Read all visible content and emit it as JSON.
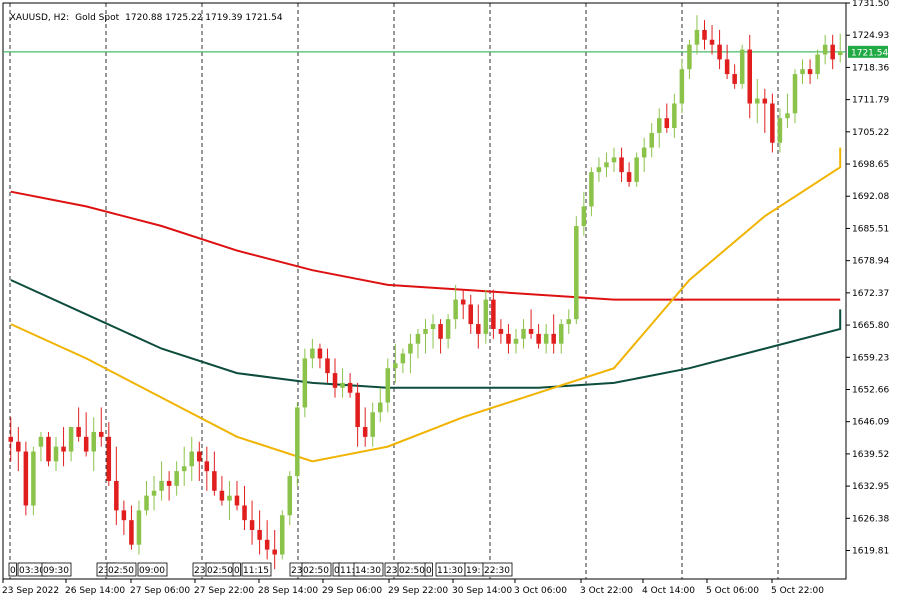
{
  "header": {
    "symbol": "XAUUSD, H2:",
    "description": "Gold Spot",
    "ohlc": "1720.88 1725.22 1719.39 1721.54"
  },
  "colors": {
    "bull": "#8bc34a",
    "bear": "#e01e1e",
    "grid": "#000000",
    "price_line": "#22aa44",
    "price_label_bg": "#22aa44",
    "ma_red": "#dd1111",
    "ma_dark": "#0d4d3d",
    "ma_yellow": "#f0b400"
  },
  "chart_data": {
    "type": "candlestick",
    "ylim": [
      1614,
      1731.5
    ],
    "y_ticks": [
      "1731.50",
      "1724.93",
      "1718.36",
      "1711.79",
      "1705.22",
      "1698.65",
      "1692.08",
      "1685.51",
      "1678.94",
      "1672.37",
      "1665.80",
      "1659.23",
      "1652.66",
      "1646.09",
      "1639.52",
      "1632.95",
      "1626.38",
      "1619.81"
    ],
    "x_ticks": [
      "23 Sep 2022",
      "26 Sep 14:00",
      "27 Sep 06:00",
      "27 Sep 22:00",
      "28 Sep 14:00",
      "29 Sep 06:00",
      "29 Sep 22:00",
      "30 Sep 14:00",
      "3 Oct 06:00",
      "3 Oct 22:00",
      "4 Oct 14:00",
      "5 Oct 06:00",
      "5 Oct 22:00"
    ],
    "mini_time_labels": [
      "0",
      "03:30",
      "09:30",
      "23:",
      "02:50",
      "09:00",
      "23:",
      "02:50",
      "0",
      "11:15",
      "23:",
      "02:50",
      "0",
      "11:",
      "14:30",
      "23:",
      "02:50",
      "0",
      "11:30",
      "19:",
      "22:30"
    ],
    "current_price": "1721.54",
    "candles": [
      [
        1643,
        1647,
        1638,
        1642
      ],
      [
        1642,
        1645,
        1636,
        1640
      ],
      [
        1640,
        1642,
        1627,
        1629
      ],
      [
        1629,
        1641,
        1627,
        1640
      ],
      [
        1641,
        1644,
        1638,
        1643
      ],
      [
        1643,
        1644,
        1637,
        1638
      ],
      [
        1638,
        1643,
        1636,
        1641
      ],
      [
        1641,
        1645,
        1637,
        1640
      ],
      [
        1640,
        1645,
        1638,
        1645
      ],
      [
        1645,
        1649,
        1642,
        1643
      ],
      [
        1643,
        1648,
        1639,
        1640
      ],
      [
        1640,
        1647,
        1636,
        1644
      ],
      [
        1644,
        1649,
        1641,
        1643
      ],
      [
        1643,
        1646,
        1633,
        1634
      ],
      [
        1634,
        1641,
        1625,
        1628
      ],
      [
        1628,
        1630,
        1623,
        1626
      ],
      [
        1626,
        1629,
        1620,
        1621
      ],
      [
        1621,
        1630,
        1619,
        1628
      ],
      [
        1628,
        1634,
        1627,
        1631
      ],
      [
        1631,
        1635,
        1628,
        1632
      ],
      [
        1632,
        1638,
        1630,
        1634
      ],
      [
        1634,
        1636,
        1630,
        1633
      ],
      [
        1633,
        1638,
        1631,
        1636
      ],
      [
        1636,
        1641,
        1633,
        1637
      ],
      [
        1637,
        1643,
        1634,
        1640
      ],
      [
        1640,
        1642,
        1634,
        1638
      ],
      [
        1638,
        1641,
        1632,
        1636
      ],
      [
        1636,
        1640,
        1631,
        1632
      ],
      [
        1632,
        1635,
        1629,
        1630
      ],
      [
        1630,
        1634,
        1626,
        1631
      ],
      [
        1631,
        1634,
        1628,
        1629
      ],
      [
        1629,
        1633,
        1624,
        1626
      ],
      [
        1626,
        1630,
        1621,
        1624
      ],
      [
        1624,
        1628,
        1619,
        1622
      ],
      [
        1622,
        1626,
        1618,
        1620
      ],
      [
        1620,
        1624,
        1616,
        1619
      ],
      [
        1619,
        1628,
        1618,
        1627
      ],
      [
        1627,
        1636,
        1625,
        1635
      ],
      [
        1635,
        1650,
        1633,
        1649
      ],
      [
        1649,
        1661,
        1647,
        1659
      ],
      [
        1659,
        1663,
        1657,
        1661
      ],
      [
        1661,
        1662,
        1657,
        1659
      ],
      [
        1659,
        1661,
        1654,
        1656
      ],
      [
        1656,
        1659,
        1651,
        1653
      ],
      [
        1653,
        1657,
        1651,
        1654
      ],
      [
        1654,
        1656,
        1651,
        1652
      ],
      [
        1652,
        1654,
        1641,
        1645
      ],
      [
        1645,
        1649,
        1641,
        1643
      ],
      [
        1643,
        1650,
        1641,
        1648
      ],
      [
        1648,
        1653,
        1646,
        1650
      ],
      [
        1650,
        1659,
        1648,
        1657
      ],
      [
        1657,
        1662,
        1654,
        1658
      ],
      [
        1658,
        1661,
        1656,
        1660
      ],
      [
        1660,
        1664,
        1656,
        1662
      ],
      [
        1662,
        1665,
        1659,
        1664
      ],
      [
        1664,
        1667,
        1660,
        1665
      ],
      [
        1665,
        1668,
        1661,
        1666
      ],
      [
        1666,
        1667,
        1660,
        1663
      ],
      [
        1663,
        1668,
        1661,
        1667
      ],
      [
        1667,
        1674,
        1665,
        1671
      ],
      [
        1671,
        1673,
        1667,
        1670
      ],
      [
        1670,
        1672,
        1664,
        1666
      ],
      [
        1666,
        1670,
        1661,
        1664
      ],
      [
        1664,
        1673,
        1662,
        1671
      ],
      [
        1671,
        1673,
        1663,
        1665
      ],
      [
        1665,
        1667,
        1662,
        1664
      ],
      [
        1664,
        1666,
        1660,
        1662
      ],
      [
        1662,
        1665,
        1660,
        1663
      ],
      [
        1663,
        1667,
        1661,
        1665
      ],
      [
        1665,
        1669,
        1663,
        1664
      ],
      [
        1664,
        1666,
        1661,
        1662
      ],
      [
        1662,
        1666,
        1660,
        1664
      ],
      [
        1664,
        1668,
        1660,
        1662
      ],
      [
        1662,
        1667,
        1660,
        1666
      ],
      [
        1666,
        1669,
        1664,
        1667
      ],
      [
        1667,
        1688,
        1666,
        1686
      ],
      [
        1686,
        1693,
        1684,
        1690
      ],
      [
        1690,
        1698,
        1688,
        1697
      ],
      [
        1697,
        1700,
        1695,
        1698
      ],
      [
        1698,
        1701,
        1696,
        1699
      ],
      [
        1699,
        1702,
        1697,
        1700
      ],
      [
        1700,
        1702,
        1695,
        1697
      ],
      [
        1697,
        1699,
        1694,
        1695
      ],
      [
        1695,
        1701,
        1694,
        1700
      ],
      [
        1700,
        1704,
        1697,
        1702
      ],
      [
        1702,
        1707,
        1700,
        1705
      ],
      [
        1705,
        1710,
        1702,
        1708
      ],
      [
        1708,
        1711,
        1705,
        1706
      ],
      [
        1706,
        1713,
        1704,
        1711
      ],
      [
        1711,
        1720,
        1709,
        1718
      ],
      [
        1718,
        1724,
        1716,
        1723
      ],
      [
        1723,
        1729,
        1721,
        1726
      ],
      [
        1726,
        1728,
        1722,
        1724
      ],
      [
        1724,
        1727,
        1721,
        1723
      ],
      [
        1723,
        1726,
        1718,
        1720
      ],
      [
        1720,
        1723,
        1716,
        1717
      ],
      [
        1717,
        1719,
        1714,
        1715
      ],
      [
        1715,
        1723,
        1714,
        1722
      ],
      [
        1722,
        1725,
        1708,
        1711
      ],
      [
        1711,
        1716,
        1707,
        1712
      ],
      [
        1712,
        1714,
        1705,
        1711
      ],
      [
        1711,
        1713,
        1701,
        1703
      ],
      [
        1703,
        1710,
        1701,
        1708
      ],
      [
        1708,
        1713,
        1706,
        1709
      ],
      [
        1709,
        1718,
        1707,
        1717
      ],
      [
        1717,
        1720,
        1715,
        1718
      ],
      [
        1718,
        1720,
        1715,
        1717
      ],
      [
        1717,
        1722,
        1716,
        1721
      ],
      [
        1721,
        1725,
        1719,
        1723
      ],
      [
        1723,
        1725,
        1718,
        1720
      ],
      [
        1720.88,
        1725.22,
        1719.39,
        1721.54
      ]
    ],
    "series": [
      {
        "color": "#dd1111",
        "x": [
          0,
          10,
          20,
          30,
          40,
          50,
          60,
          70,
          80,
          90,
          100,
          110,
          115
        ],
        "values": [
          1693,
          1690,
          1686,
          1681,
          1677,
          1674,
          1673,
          1672,
          1671,
          1671,
          1671,
          1671,
          1671
        ]
      },
      {
        "color": "#0d4d3d",
        "x": [
          0,
          10,
          20,
          30,
          40,
          50,
          60,
          70,
          80,
          90,
          100,
          110,
          115
        ],
        "values": [
          1675,
          1668,
          1661,
          1656,
          1654,
          1653,
          1653,
          1653,
          1654,
          1657,
          1661,
          1665,
          1669
        ]
      },
      {
        "color": "#f0b400",
        "x": [
          0,
          10,
          20,
          30,
          40,
          50,
          60,
          70,
          80,
          90,
          100,
          110,
          115
        ],
        "values": [
          1666,
          1659,
          1651,
          1643,
          1638,
          1641,
          1647,
          1652,
          1657,
          1675,
          1688,
          1698,
          1702
        ]
      }
    ]
  }
}
